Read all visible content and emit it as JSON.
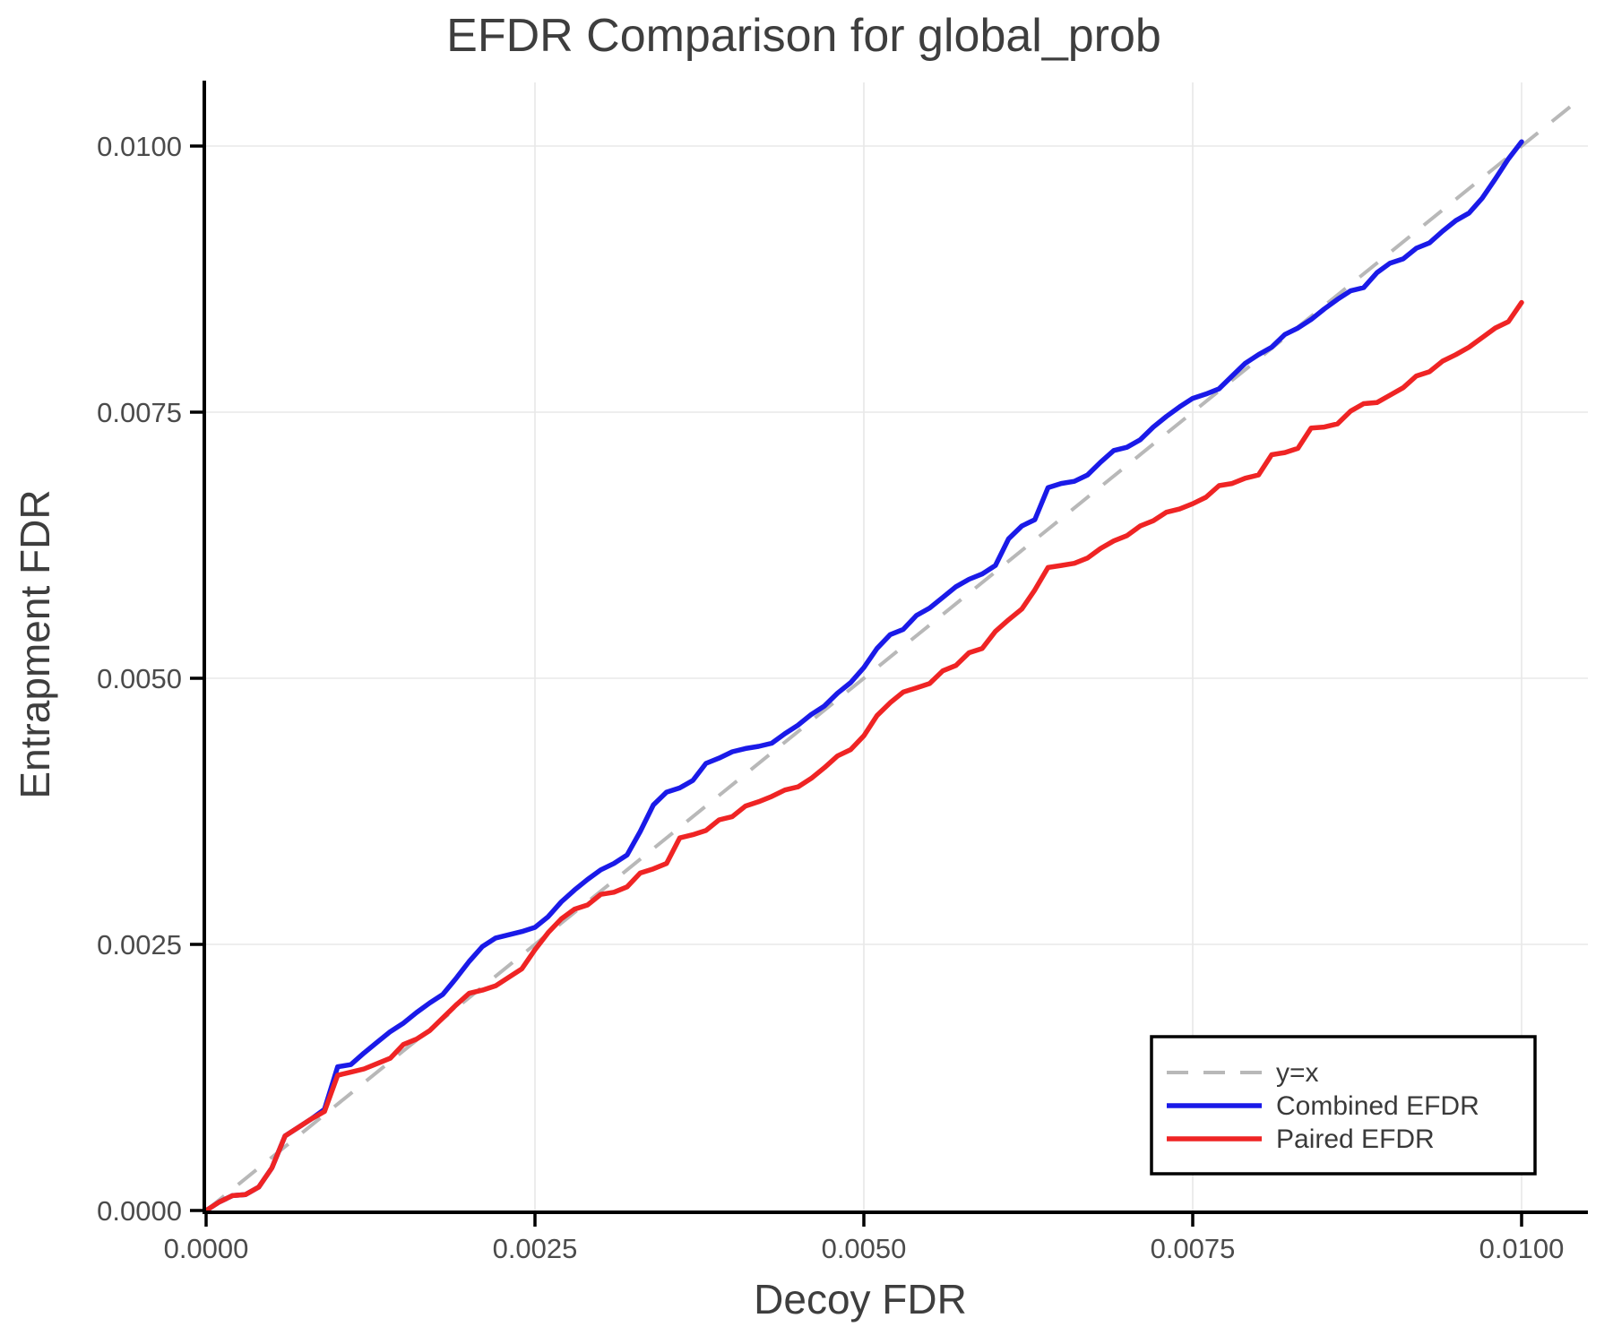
{
  "figure": {
    "title": "EFDR Comparison for global_prob",
    "xlabel": "Decoy FDR",
    "ylabel": "Entrapment FDR"
  },
  "legend": {
    "position": "bottom-right",
    "items": [
      {
        "label": "y=x",
        "color": "#b8b8b8",
        "dashed": true
      },
      {
        "label": "Combined EFDR",
        "color": "#1a1ae8",
        "dashed": false
      },
      {
        "label": "Paired EFDR",
        "color": "#ef2424",
        "dashed": false
      }
    ]
  },
  "colors": {
    "background": "#ffffff",
    "grid": "#e8e8e8",
    "spine": "#000000",
    "identity": "#b8b8b8",
    "combined": "#1a1ae8",
    "paired": "#ef2424",
    "tick_text": "#4b4b4b",
    "title_text": "#3e3e3e"
  },
  "chart_data": {
    "type": "line",
    "title": "EFDR Comparison for global_prob",
    "xlabel": "Decoy FDR",
    "ylabel": "Entrapment FDR",
    "xlim": [
      0,
      0.0105
    ],
    "ylim": [
      0,
      0.0106
    ],
    "grid": true,
    "legend_position": "bottom-right",
    "xticks": {
      "values": [
        0,
        0.0025,
        0.005,
        0.0075,
        0.01
      ],
      "labels": [
        "0.0000",
        "0.0025",
        "0.0050",
        "0.0075",
        "0.0100"
      ]
    },
    "yticks": {
      "values": [
        0,
        0.0025,
        0.005,
        0.0075,
        0.01
      ],
      "labels": [
        "0.0000",
        "0.0025",
        "0.0050",
        "0.0075",
        "0.0100"
      ]
    },
    "identity_line": {
      "name": "y=x",
      "from": [
        0,
        0
      ],
      "to": [
        0.01045,
        0.01045
      ],
      "color": "#b8b8b8",
      "dashed": true
    },
    "x": [
      0,
      0.0001,
      0.0002,
      0.0003,
      0.0004,
      0.0005,
      0.0006,
      0.0007,
      0.0008,
      0.0009,
      0.001,
      0.0011,
      0.0012,
      0.0013,
      0.0014,
      0.0015,
      0.0016,
      0.0017,
      0.0018,
      0.0019,
      0.002,
      0.0021,
      0.0022,
      0.0023,
      0.0024,
      0.0025,
      0.0026,
      0.0027,
      0.0028,
      0.0029,
      0.003,
      0.0031,
      0.0032,
      0.0033,
      0.0034,
      0.0035,
      0.0036,
      0.0037,
      0.0038,
      0.0039,
      0.004,
      0.0041,
      0.0042,
      0.0043,
      0.0044,
      0.0045,
      0.0046,
      0.0047,
      0.0048,
      0.0049,
      0.005,
      0.0051,
      0.0052,
      0.0053,
      0.0054,
      0.0055,
      0.0056,
      0.0057,
      0.0058,
      0.0059,
      0.006,
      0.0061,
      0.0062,
      0.0063,
      0.0064,
      0.0065,
      0.0066,
      0.0067,
      0.0068,
      0.0069,
      0.007,
      0.0071,
      0.0072,
      0.0073,
      0.0074,
      0.0075,
      0.0076,
      0.0077,
      0.0078,
      0.0079,
      0.008,
      0.0081,
      0.0082,
      0.0083,
      0.0084,
      0.0085,
      0.0086,
      0.0087,
      0.0088,
      0.0089,
      0.009,
      0.0091,
      0.0092,
      0.0093,
      0.0094,
      0.0095,
      0.0096,
      0.0097,
      0.0098,
      0.0099,
      0.01
    ],
    "series": [
      {
        "name": "Combined EFDR",
        "color": "#1a1ae8",
        "y": [
          0,
          8e-05,
          0.00014,
          0.00015,
          0.00022,
          0.0004,
          0.0007,
          0.00078,
          0.00086,
          0.00095,
          0.00135,
          0.00137,
          0.00148,
          0.00158,
          0.00168,
          0.00176,
          0.00186,
          0.00195,
          0.00203,
          0.00218,
          0.00234,
          0.00248,
          0.00256,
          0.00259,
          0.00262,
          0.00266,
          0.00276,
          0.0029,
          0.00301,
          0.00311,
          0.0032,
          0.00326,
          0.00334,
          0.00356,
          0.00381,
          0.00393,
          0.00397,
          0.00404,
          0.0042,
          0.00425,
          0.00431,
          0.00434,
          0.00436,
          0.00439,
          0.00448,
          0.00456,
          0.00466,
          0.00474,
          0.00486,
          0.00496,
          0.0051,
          0.00528,
          0.00541,
          0.00546,
          0.00559,
          0.00566,
          0.00576,
          0.00586,
          0.00593,
          0.00598,
          0.00606,
          0.00631,
          0.00643,
          0.00649,
          0.00679,
          0.00683,
          0.00685,
          0.00691,
          0.00703,
          0.00714,
          0.00717,
          0.00724,
          0.00736,
          0.00746,
          0.00755,
          0.00763,
          0.00767,
          0.00772,
          0.00784,
          0.00796,
          0.00804,
          0.00811,
          0.00823,
          0.00829,
          0.00837,
          0.00847,
          0.00856,
          0.00864,
          0.00867,
          0.00881,
          0.0089,
          0.00894,
          0.00904,
          0.00909,
          0.0092,
          0.0093,
          0.00937,
          0.00951,
          0.00969,
          0.00988,
          0.01004
        ]
      },
      {
        "name": "Paired EFDR",
        "color": "#ef2424",
        "y": [
          0,
          8e-05,
          0.00014,
          0.00015,
          0.00022,
          0.0004,
          0.0007,
          0.00078,
          0.00086,
          0.00093,
          0.00127,
          0.0013,
          0.00133,
          0.00138,
          0.00143,
          0.00156,
          0.00161,
          0.00169,
          0.00181,
          0.00193,
          0.00204,
          0.00207,
          0.00211,
          0.00219,
          0.00227,
          0.00245,
          0.00261,
          0.00274,
          0.00283,
          0.00287,
          0.00297,
          0.00299,
          0.00304,
          0.00317,
          0.00321,
          0.00326,
          0.0035,
          0.00353,
          0.00357,
          0.00367,
          0.0037,
          0.0038,
          0.00384,
          0.00389,
          0.00395,
          0.00398,
          0.00406,
          0.00416,
          0.00427,
          0.00433,
          0.00446,
          0.00465,
          0.00477,
          0.00487,
          0.00491,
          0.00495,
          0.00507,
          0.00512,
          0.00524,
          0.00528,
          0.00544,
          0.00555,
          0.00565,
          0.00583,
          0.00604,
          0.00606,
          0.00608,
          0.00613,
          0.00622,
          0.00629,
          0.00634,
          0.00643,
          0.00648,
          0.00656,
          0.00659,
          0.00664,
          0.0067,
          0.00681,
          0.00683,
          0.00688,
          0.00691,
          0.0071,
          0.00712,
          0.00716,
          0.00735,
          0.00736,
          0.00739,
          0.00751,
          0.00758,
          0.00759,
          0.00766,
          0.00773,
          0.00784,
          0.00788,
          0.00798,
          0.00804,
          0.00811,
          0.0082,
          0.00829,
          0.00835,
          0.00853
        ]
      }
    ]
  }
}
